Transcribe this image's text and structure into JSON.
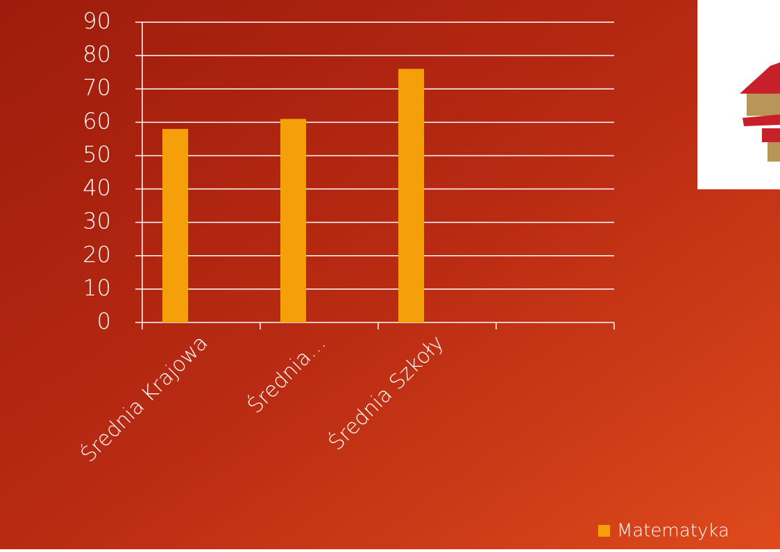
{
  "chart_data": {
    "type": "bar",
    "categories": [
      "Średnia Krajowa",
      "Średnia…",
      "Średnia Szkoły",
      null
    ],
    "series": [
      {
        "name": "Matematyka",
        "color": "#f5a00a",
        "values": [
          58,
          61,
          76,
          null
        ]
      }
    ],
    "ylim": [
      0,
      90
    ],
    "yticks": [
      0,
      10,
      20,
      30,
      40,
      50,
      60,
      70,
      80,
      90
    ],
    "grid": true,
    "legend": "bottom-right"
  }
}
